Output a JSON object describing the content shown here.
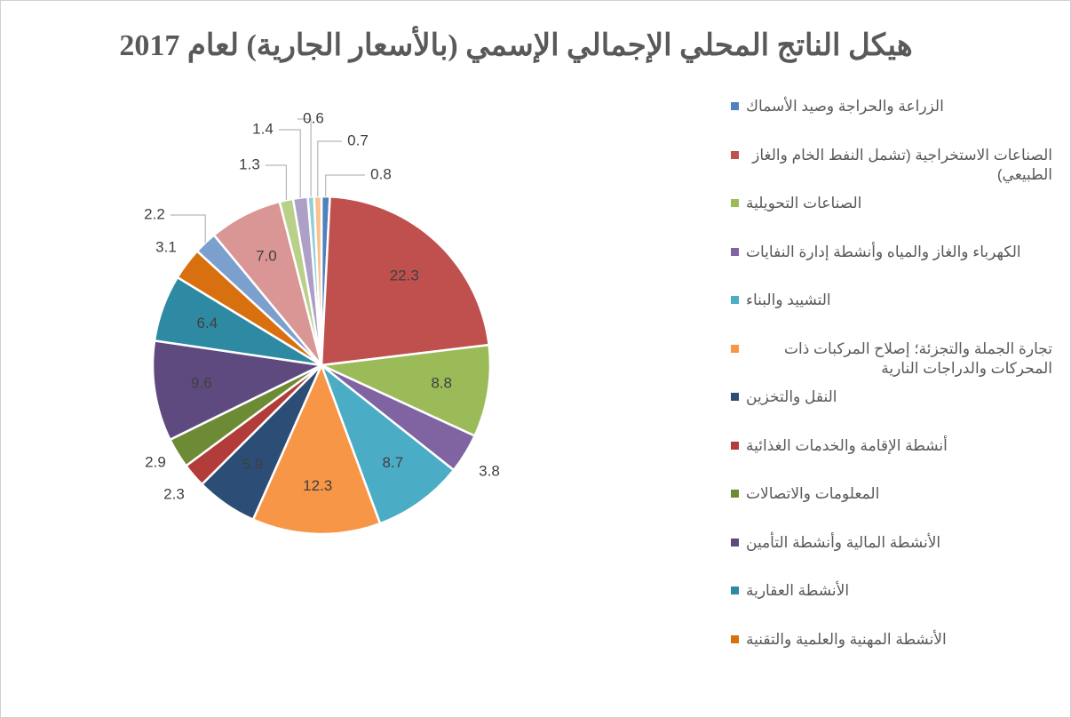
{
  "chart_data": {
    "type": "pie",
    "title": "هيكل الناتج المحلي الإجمالي الإسمي (بالأسعار الجارية) لعام 2017",
    "categories": [
      "الزراعة والحراجة وصيد الأسماك",
      "الصناعات الاستخراجية (تشمل  النفط الخام والغاز الطبيعي)",
      "الصناعات التحويلية",
      "الكهرباء والغاز والمياه وأنشطة إدارة النفايات",
      "التشييد والبناء",
      "تجارة الجملة والتجزئة؛ إصلاح المركبات ذات المحركات والدراجات النارية",
      "النقل والتخزين",
      "أنشطة الإقامة والخدمات الغذائية",
      "المعلومات والاتصالات",
      "الأنشطة المالية وأنشطة التأمين",
      "الأنشطة العقارية",
      "الأنشطة المهنية والعلمية والتقنية",
      null,
      null,
      null,
      null,
      null,
      null
    ],
    "values": [
      0.8,
      22.3,
      8.8,
      3.8,
      8.7,
      12.3,
      5.9,
      2.3,
      2.9,
      9.6,
      6.4,
      3.1,
      2.2,
      7.0,
      1.3,
      1.4,
      0.6,
      0.7
    ],
    "value_labels": [
      "0.8",
      "22.3",
      "8.8",
      "3.8",
      "8.7",
      "12.3",
      "5.9",
      "2.3",
      "2.9",
      "9.6",
      "6.4",
      "3.1",
      "2.2",
      "7.0",
      "1.3",
      "1.4",
      "0.6",
      "0.7"
    ],
    "colors": [
      "#4f81bd",
      "#c0504d",
      "#9bbb59",
      "#8064a2",
      "#4bacc6",
      "#f79646",
      "#2c4d75",
      "#b13c39",
      "#6d8a35",
      "#5f4a80",
      "#2e8aa3",
      "#d9700f",
      "#7ba0cd",
      "#d99694",
      "#b9d08a",
      "#ae9fc6",
      "#92cddc",
      "#fac08f"
    ]
  }
}
